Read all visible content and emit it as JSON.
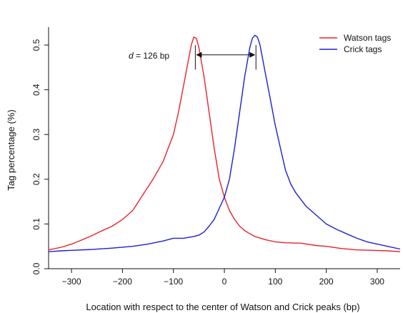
{
  "chart_data": {
    "type": "line",
    "xlabel": "Location with respect to the center of Watson and Crick peaks (bp)",
    "ylabel": "Tag percentage (%)",
    "xlim": [
      -345,
      345
    ],
    "ylim": [
      0,
      0.54
    ],
    "xticks": [
      -300,
      -200,
      -100,
      0,
      100,
      200,
      300
    ],
    "xtick_labels": [
      "−300",
      "−200",
      "−100",
      "0",
      "100",
      "200",
      "300"
    ],
    "yticks": [
      0.0,
      0.1,
      0.2,
      0.3,
      0.4,
      0.5
    ],
    "ytick_labels": [
      "0.0",
      "0.1",
      "0.2",
      "0.3",
      "0.4",
      "0.5"
    ],
    "grid": false,
    "legend_position": "top-right",
    "annotation": {
      "var": "d",
      "text": " = 126 bp",
      "x_from": -57,
      "x_to": 62
    },
    "series": [
      {
        "name": "Watson tags",
        "color": "#e8222a",
        "x": [
          -345,
          -320,
          -300,
          -280,
          -260,
          -240,
          -220,
          -200,
          -180,
          -160,
          -140,
          -120,
          -100,
          -90,
          -80,
          -70,
          -65,
          -60,
          -55,
          -50,
          -40,
          -30,
          -20,
          -10,
          0,
          10,
          20,
          30,
          40,
          50,
          60,
          80,
          100,
          120,
          150,
          180,
          200,
          230,
          260,
          290,
          320,
          345
        ],
        "y": [
          0.042,
          0.048,
          0.055,
          0.064,
          0.074,
          0.085,
          0.095,
          0.11,
          0.13,
          0.165,
          0.2,
          0.24,
          0.3,
          0.35,
          0.41,
          0.47,
          0.5,
          0.518,
          0.515,
          0.495,
          0.43,
          0.35,
          0.27,
          0.2,
          0.16,
          0.13,
          0.11,
          0.095,
          0.085,
          0.078,
          0.072,
          0.065,
          0.06,
          0.058,
          0.057,
          0.052,
          0.05,
          0.045,
          0.042,
          0.041,
          0.04,
          0.038
        ]
      },
      {
        "name": "Crick tags",
        "color": "#1d1fd6",
        "x": [
          -345,
          -320,
          -300,
          -260,
          -220,
          -180,
          -150,
          -120,
          -100,
          -80,
          -60,
          -50,
          -40,
          -30,
          -20,
          -10,
          0,
          10,
          20,
          30,
          40,
          50,
          55,
          60,
          65,
          70,
          80,
          90,
          100,
          110,
          120,
          130,
          140,
          160,
          180,
          200,
          220,
          240,
          260,
          280,
          300,
          320,
          345
        ],
        "y": [
          0.038,
          0.04,
          0.041,
          0.043,
          0.046,
          0.05,
          0.055,
          0.062,
          0.068,
          0.068,
          0.072,
          0.075,
          0.082,
          0.095,
          0.11,
          0.135,
          0.16,
          0.2,
          0.27,
          0.35,
          0.43,
          0.495,
          0.515,
          0.522,
          0.518,
          0.5,
          0.44,
          0.38,
          0.32,
          0.27,
          0.22,
          0.19,
          0.17,
          0.14,
          0.12,
          0.1,
          0.088,
          0.078,
          0.068,
          0.06,
          0.055,
          0.05,
          0.044
        ]
      }
    ]
  }
}
